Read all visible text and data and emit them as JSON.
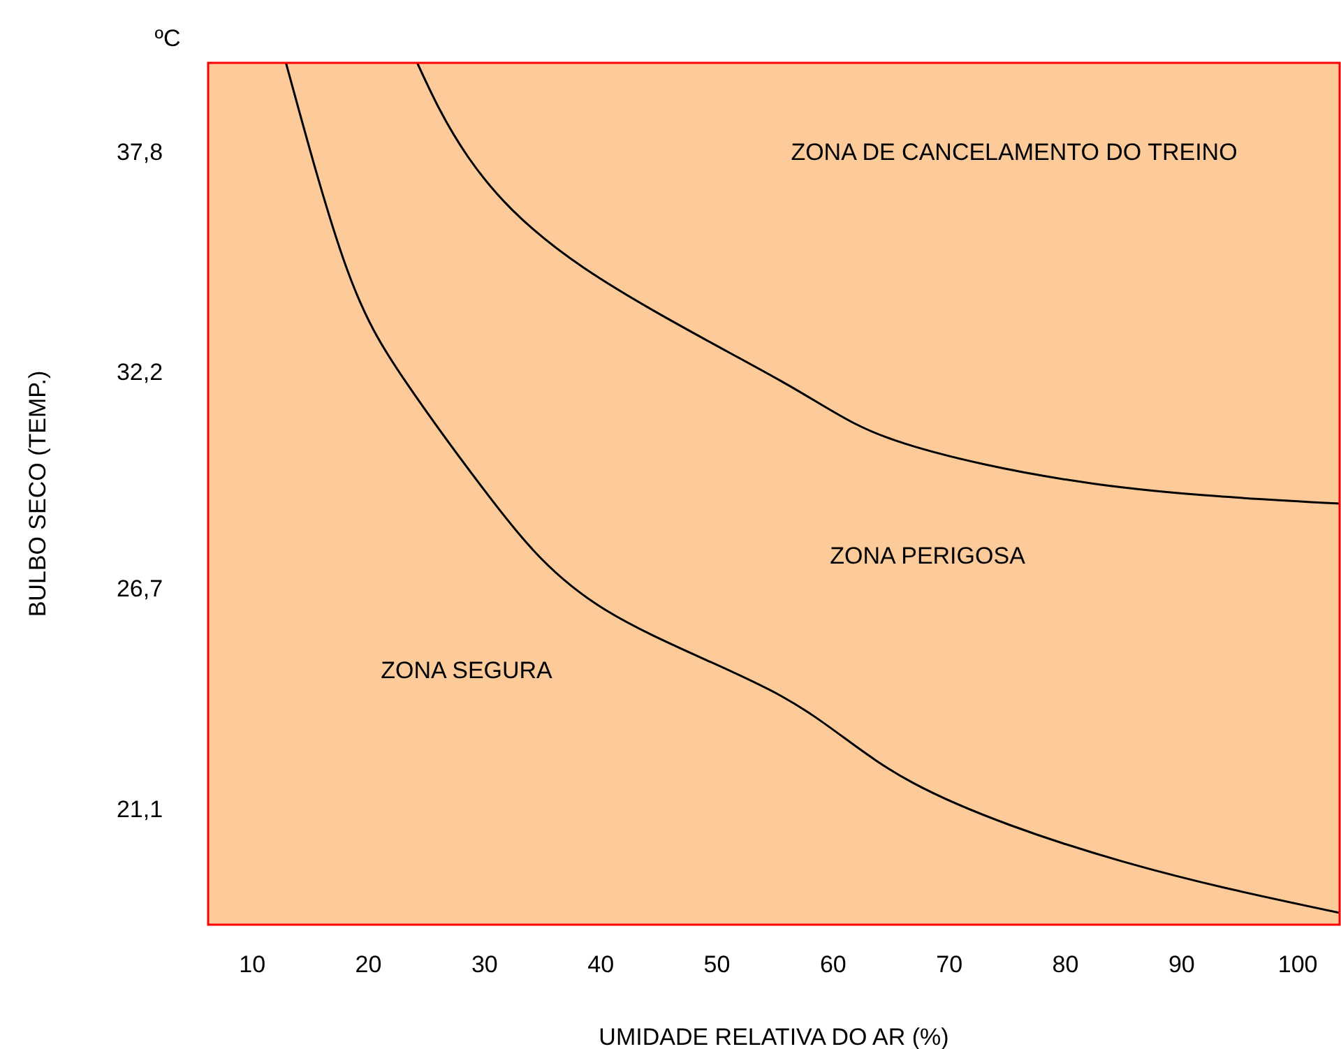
{
  "chart_data": {
    "type": "line",
    "xlabel": "UMIDADE RELATIVA DO AR (%)",
    "ylabel": "BULBO SECO (TEMP.)",
    "xlim": [
      6.2,
      103.6
    ],
    "xticks": [
      10,
      20,
      30,
      40,
      50,
      60,
      70,
      80,
      90,
      100
    ],
    "ylim": [
      18.2,
      40.1
    ],
    "yticks": [
      {
        "value": 21.1,
        "label": "21,1"
      },
      {
        "value": 26.7,
        "label": "26,7"
      },
      {
        "value": 32.2,
        "label": "32,2"
      },
      {
        "value": 37.8,
        "label": "37,8"
      }
    ],
    "grid": false,
    "marker": "none",
    "line_style": "solid",
    "series": [
      {
        "color": "#000000",
        "x": [
          12.9,
          18.1,
          23.2,
          30.6,
          40.4,
          55.6,
          66.9,
          85.0,
          103.6
        ],
        "values": [
          40.1,
          34.9,
          32.0,
          29.0,
          26.2,
          24.0,
          21.8,
          19.8,
          18.5
        ]
      },
      {
        "color": "#000000",
        "x": [
          24.2,
          28.6,
          38.5,
          55.6,
          65.4,
          82.6,
          103.6
        ],
        "values": [
          40.1,
          37.7,
          34.9,
          32.0,
          30.5,
          29.4,
          28.9
        ]
      }
    ],
    "annotations": [
      "ºC",
      "ZONA DE CANCELAMENTO DO TREINO",
      "ZONA PERIGOSA",
      "ZONA SEGURA"
    ]
  }
}
